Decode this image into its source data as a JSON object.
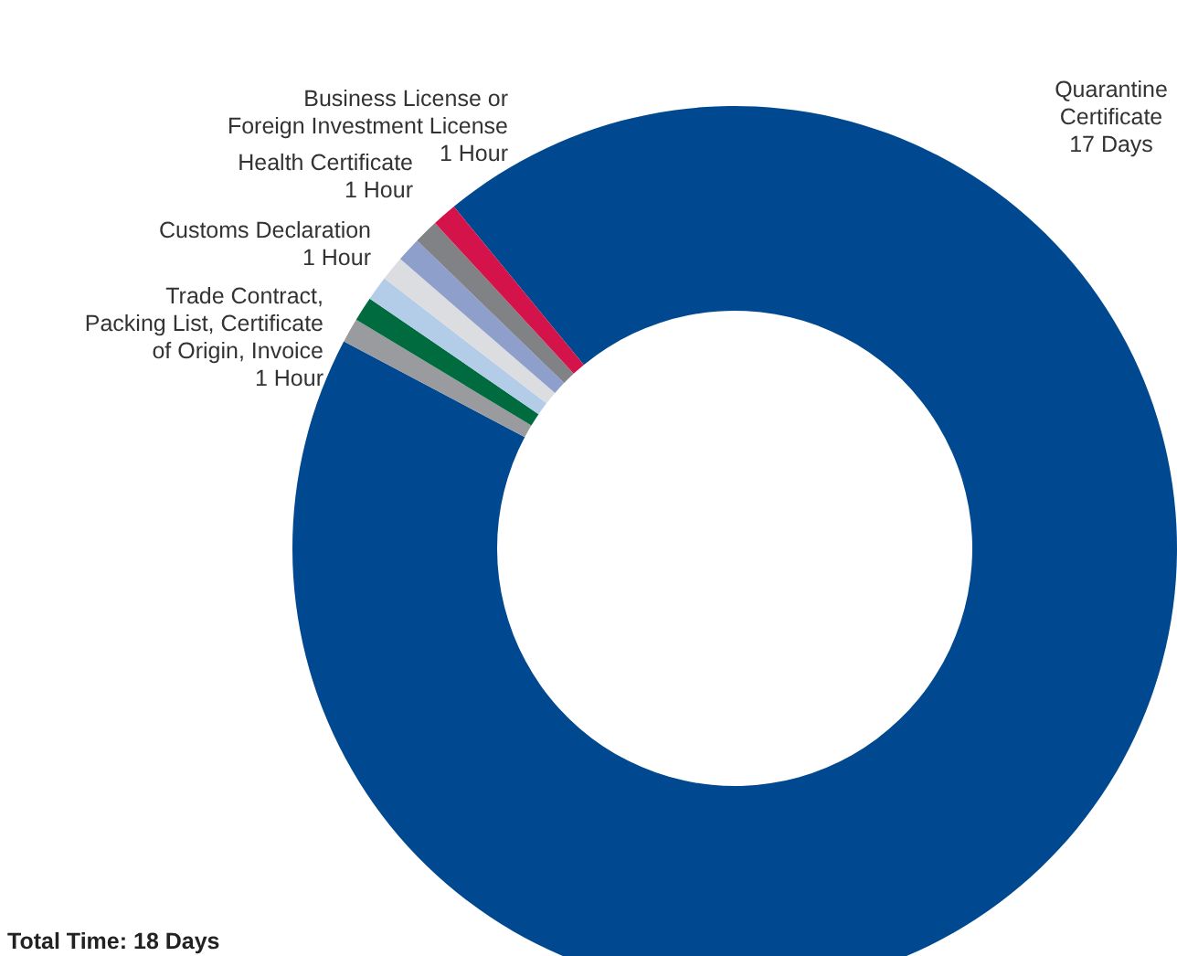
{
  "chart_data": {
    "type": "donut",
    "categories": [
      "Quarantine\nCertificate\n17 Days",
      "Trade Contract,\nPacking List, Certificate\nof Origin, Invoice\n1 Hour",
      null,
      null,
      null,
      "Customs Declaration\n1 Hour",
      "Health Certificate\n1 Hour",
      "Business License or\nForeign Investment License\n1 Hour"
    ],
    "values": [
      93.7,
      0.9,
      0.9,
      0.9,
      0.9,
      0.9,
      0.9,
      0.9
    ],
    "colors": [
      "#004990",
      "#999b9e",
      "#006b3f",
      "#b3cde9",
      "#dcdde0",
      "#8e9fcb",
      "#808285",
      "#d4134a"
    ],
    "annotations": [
      "Total Time: 18 Days"
    ]
  }
}
